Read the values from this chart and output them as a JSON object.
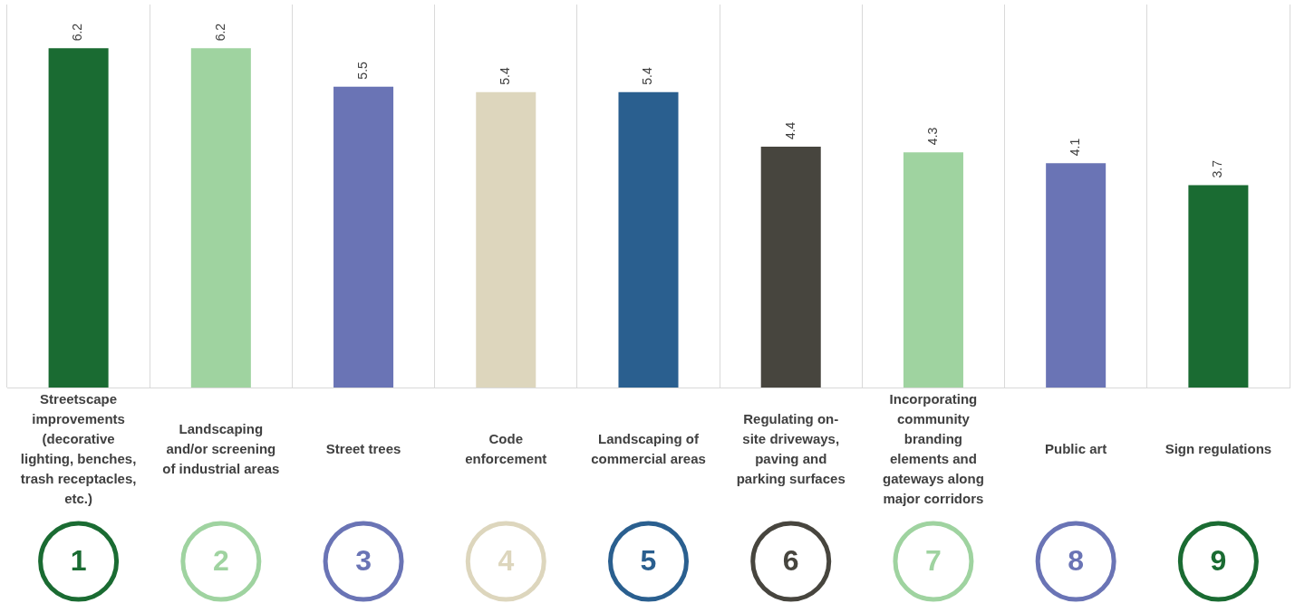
{
  "chart_data": {
    "type": "bar",
    "categories": [
      "Streetscape improvements (decorative lighting, benches, trash receptacles, etc.)",
      "Landscaping and/or screening of industrial areas",
      "Street trees",
      "Code enforcement",
      "Landscaping of commercial areas",
      "Regulating on-site driveways, paving and parking surfaces",
      "Incorporating community branding elements and gateways along major corridors",
      "Public art",
      "Sign regulations"
    ],
    "values": [
      6.2,
      6.2,
      5.5,
      5.4,
      5.4,
      4.4,
      4.3,
      4.1,
      3.7
    ],
    "colors": [
      "#1a6b32",
      "#9fd3a0",
      "#6a74b5",
      "#ddd6bd",
      "#2a5f8f",
      "#47453e",
      "#9fd3a0",
      "#6a74b5",
      "#1a6b32"
    ],
    "ylim": [
      0,
      7
    ],
    "data_labels": true,
    "grid": "x",
    "legend": false,
    "tick_labels": "x",
    "annotations": [
      "1",
      "2",
      "3",
      "4",
      "5",
      "6",
      "7",
      "8",
      "9"
    ]
  }
}
